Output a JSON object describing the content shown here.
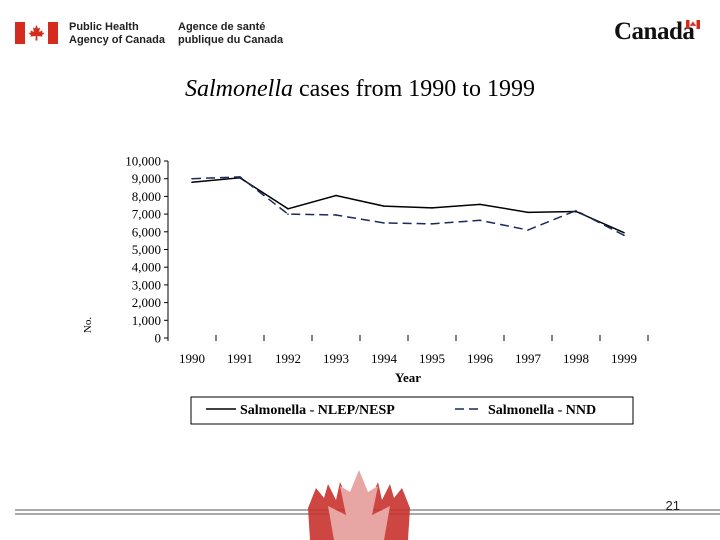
{
  "header": {
    "agency_en_line1": "Public Health",
    "agency_en_line2": "Agency of Canada",
    "agency_fr_line1": "Agence de santé",
    "agency_fr_line2": "publique du Canada",
    "wordmark": "Canada"
  },
  "colors": {
    "flag_red": "#d52b1e",
    "maple_dark": "#c8322e",
    "maple_light": "#e7a6a4",
    "text": "#000000"
  },
  "chart_data": {
    "type": "line",
    "title_italic": "Salmonella",
    "title_rest": " cases from 1990 to 1999",
    "xlabel": "Year",
    "ylabel": "No.",
    "categories": [
      "1990",
      "1991",
      "1992",
      "1993",
      "1994",
      "1995",
      "1996",
      "1997",
      "1998",
      "1999"
    ],
    "ylim": [
      0,
      10000
    ],
    "yticks": [
      "0",
      "1,000",
      "2,000",
      "3,000",
      "4,000",
      "5,000",
      "6,000",
      "7,000",
      "8,000",
      "9,000",
      "10,000"
    ],
    "series": [
      {
        "name": "Salmonella - NLEP/NESP",
        "style": "solid",
        "values": [
          8800,
          9050,
          7300,
          8050,
          7450,
          7350,
          7550,
          7100,
          7150,
          5950
        ]
      },
      {
        "name": "Salmonella - NND",
        "style": "dashed",
        "values": [
          9000,
          9100,
          7000,
          6950,
          6500,
          6450,
          6650,
          6100,
          7200,
          5800
        ]
      }
    ],
    "legend_position": "bottom"
  },
  "footer": {
    "page_number": "21"
  }
}
